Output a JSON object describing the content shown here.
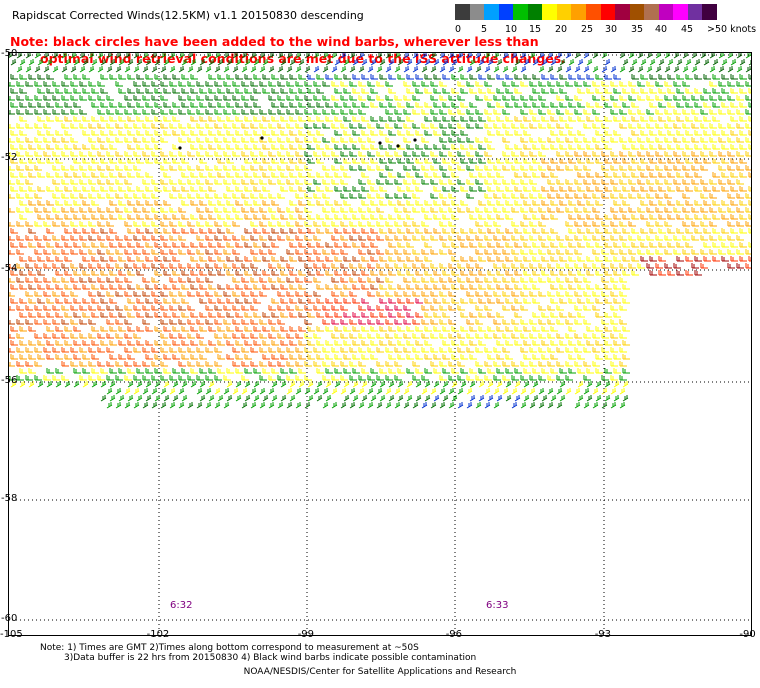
{
  "title": "Rapidscat Corrected Winds(12.5KM) v1.1 20150830 descending",
  "note": {
    "line1": "Note: black circles have been added to the wind barbs, wherever less than",
    "line2": "optimal wind retrieval conditions are met due to the ISS attitude changes."
  },
  "legend": {
    "colors": [
      "#3c3c3c",
      "#8c8c8c",
      "#00a0ff",
      "#0040ff",
      "#00c000",
      "#008000",
      "#ffff00",
      "#ffd000",
      "#ffa000",
      "#ff5000",
      "#ff0000",
      "#a00040",
      "#a05000",
      "#b07050",
      "#c000c0",
      "#ff00ff",
      "#7030a0",
      "#400040"
    ],
    "ticks": [
      "0",
      "5",
      "10",
      "15",
      "20",
      "25",
      "30",
      "35",
      "40",
      "45",
      ">50 knots"
    ]
  },
  "axes": {
    "lat_labels": [
      "-50",
      "-52",
      "-54",
      "-56",
      "-58",
      "-60"
    ],
    "lon_labels": [
      "-105",
      "-102",
      "-99",
      "-96",
      "-93",
      "-90"
    ]
  },
  "times": [
    "6:32",
    "6:33"
  ],
  "footnote": {
    "line1": "Note: 1) Times are GMT 2)Times along bottom correspond to measurement at ~50S",
    "line2": "3)Data buffer is 22 hrs from 20150830 4) Black wind barbs indicate possible contamination"
  },
  "credit": "NOAA/NESDIS/Center for Satellite Applications and Research"
}
